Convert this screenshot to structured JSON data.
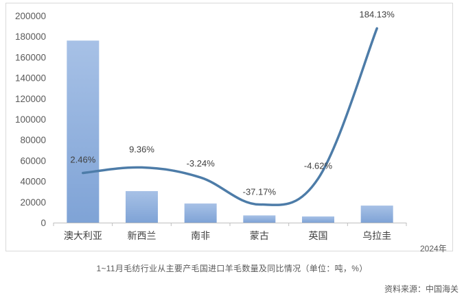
{
  "chart_data": {
    "type": "bar",
    "categories": [
      "澳大利亚",
      "新西兰",
      "南非",
      "蒙古",
      "英国",
      "乌拉圭"
    ],
    "series": [
      {
        "type": "bar",
        "values": [
          176000,
          30500,
          18500,
          7000,
          6000,
          16500
        ]
      },
      {
        "type": "line",
        "values": [
          2.46,
          9.36,
          -3.24,
          -37.17,
          -4.62,
          184.13
        ]
      }
    ],
    "line_labels": [
      "2.46%",
      "9.36%",
      "-3.24%",
      "-37.17%",
      "-4.62%",
      "184.13%"
    ],
    "y_ticks": [
      "0",
      "20000",
      "40000",
      "60000",
      "80000",
      "100000",
      "120000",
      "140000",
      "160000",
      "180000",
      "200000"
    ],
    "ylim": [
      0,
      200000
    ],
    "y2lim": [
      -60,
      200
    ],
    "grid": false,
    "legend": "none",
    "x_unit_label": "2024年"
  },
  "caption": "1~11月毛纺行业从主要产毛国进口羊毛数量及同比情况（单位：吨，%）",
  "source": "资料来源：中国海关",
  "colors": {
    "bar_top": "#a7c1e6",
    "bar_bottom": "#7fa3d6",
    "line": "#4d7ca8",
    "axis": "#bfbfbf",
    "text": "#595959"
  }
}
